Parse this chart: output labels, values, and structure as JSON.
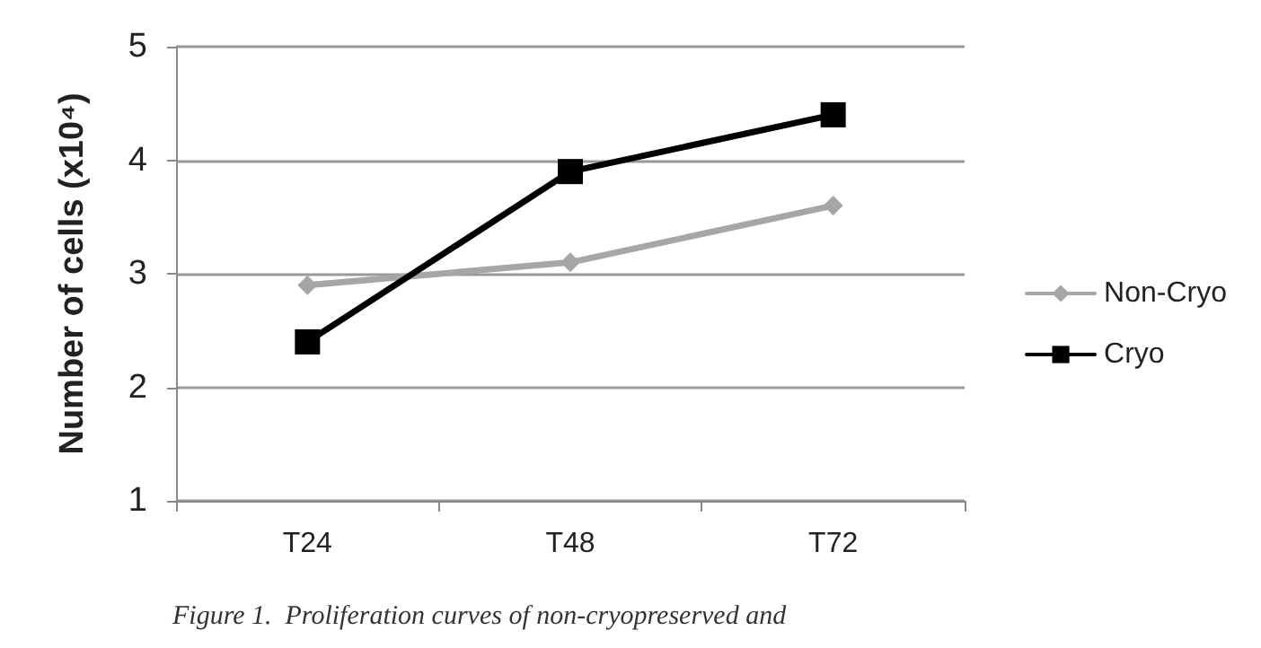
{
  "chart_data": {
    "type": "line",
    "ylabel": "Number of cells (x10⁴)",
    "categories": [
      "T24",
      "T48",
      "T72"
    ],
    "series": [
      {
        "name": "Non-Cryo",
        "color": "#a6a6a6",
        "values": [
          2.9,
          3.1,
          3.6
        ],
        "marker": "diamond"
      },
      {
        "name": "Cryo",
        "color": "#000000",
        "values": [
          2.4,
          3.9,
          4.4
        ],
        "marker": "square"
      }
    ],
    "ylim": [
      1,
      5
    ],
    "yticks": [
      1,
      2,
      3,
      4,
      5
    ],
    "grid": "y",
    "legend": "right",
    "line_style": "solid",
    "annotations": [
      "Figure 1.  Proliferation curves of non-cryopreserved and"
    ]
  }
}
